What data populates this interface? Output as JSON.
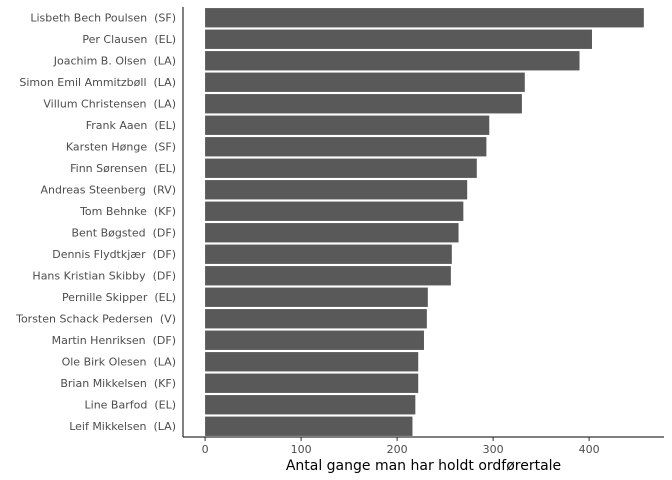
{
  "chart_data": {
    "type": "bar",
    "orientation": "horizontal",
    "title": "",
    "xlabel": "Antal gange man har holdt ordførertale",
    "ylabel": "",
    "xlim": [
      -23,
      478
    ],
    "x_ticks": [
      0,
      100,
      200,
      300,
      400
    ],
    "grid": false,
    "bar_color": "#595959",
    "categories": [
      "Lisbeth Bech Poulsen  (SF)",
      "Per Clausen  (EL)",
      "Joachim B. Olsen  (LA)",
      "Simon Emil Ammitzbøll  (LA)",
      "Villum Christensen  (LA)",
      "Frank Aaen  (EL)",
      "Karsten Hønge  (SF)",
      "Finn Sørensen  (EL)",
      "Andreas Steenberg  (RV)",
      "Tom Behnke  (KF)",
      "Bent Bøgsted  (DF)",
      "Dennis Flydtkjær  (DF)",
      "Hans Kristian Skibby  (DF)",
      "Pernille Skipper  (EL)",
      "Torsten Schack Pedersen  (V)",
      "Martin Henriksen  (DF)",
      "Ole Birk Olesen  (LA)",
      "Brian Mikkelsen  (KF)",
      "Line Barfod  (EL)",
      "Leif Mikkelsen  (LA)"
    ],
    "values": [
      457,
      403,
      390,
      333,
      330,
      296,
      293,
      283,
      273,
      269,
      264,
      257,
      256,
      232,
      231,
      228,
      222,
      222,
      219,
      216
    ]
  }
}
